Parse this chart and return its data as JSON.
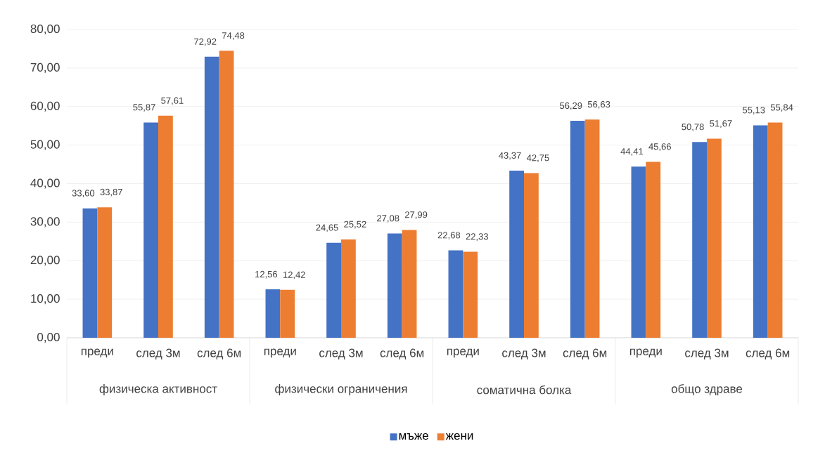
{
  "chart_data": {
    "type": "bar",
    "categories": [
      "преди",
      "след 3м",
      "след 6м",
      "преди",
      "след 3м",
      "след 6м",
      "преди",
      "след 3м",
      "след 6м",
      "преди",
      "след 3м",
      "след 6м"
    ],
    "annotations": [
      "физическа активност",
      "физически ограничения",
      "соматична болка",
      "общо здраве"
    ],
    "series": [
      {
        "name": "мъже",
        "color": "#4472c4",
        "values": [
          33.6,
          55.87,
          72.92,
          12.56,
          24.65,
          27.08,
          22.68,
          43.37,
          56.29,
          44.41,
          50.78,
          55.13
        ],
        "value_labels": [
          "33,60",
          "55,87",
          "72,92",
          "12,56",
          "24,65",
          "27,08",
          "22,68",
          "43,37",
          "56,29",
          "44,41",
          "50,78",
          "55,13"
        ]
      },
      {
        "name": "жени",
        "color": "#ed7d31",
        "values": [
          33.87,
          57.61,
          74.48,
          12.42,
          25.52,
          27.99,
          22.33,
          42.75,
          56.63,
          45.66,
          51.67,
          55.84
        ],
        "value_labels": [
          "33,87",
          "57,61",
          "74,48",
          "12,42",
          "25,52",
          "27,99",
          "22,33",
          "42,75",
          "56,63",
          "45,66",
          "51,67",
          "55,84"
        ]
      }
    ],
    "ylim": [
      0,
      80
    ],
    "yticks": [
      {
        "value": 0,
        "label": "0,00"
      },
      {
        "value": 10,
        "label": "10,00"
      },
      {
        "value": 20,
        "label": "20,00"
      },
      {
        "value": 30,
        "label": "30,00"
      },
      {
        "value": 40,
        "label": "40,00"
      },
      {
        "value": 50,
        "label": "50,00"
      },
      {
        "value": 60,
        "label": "60,00"
      },
      {
        "value": 70,
        "label": "70,00"
      },
      {
        "value": 80,
        "label": "80,00"
      }
    ],
    "grid": "y",
    "legend": "bottom"
  }
}
